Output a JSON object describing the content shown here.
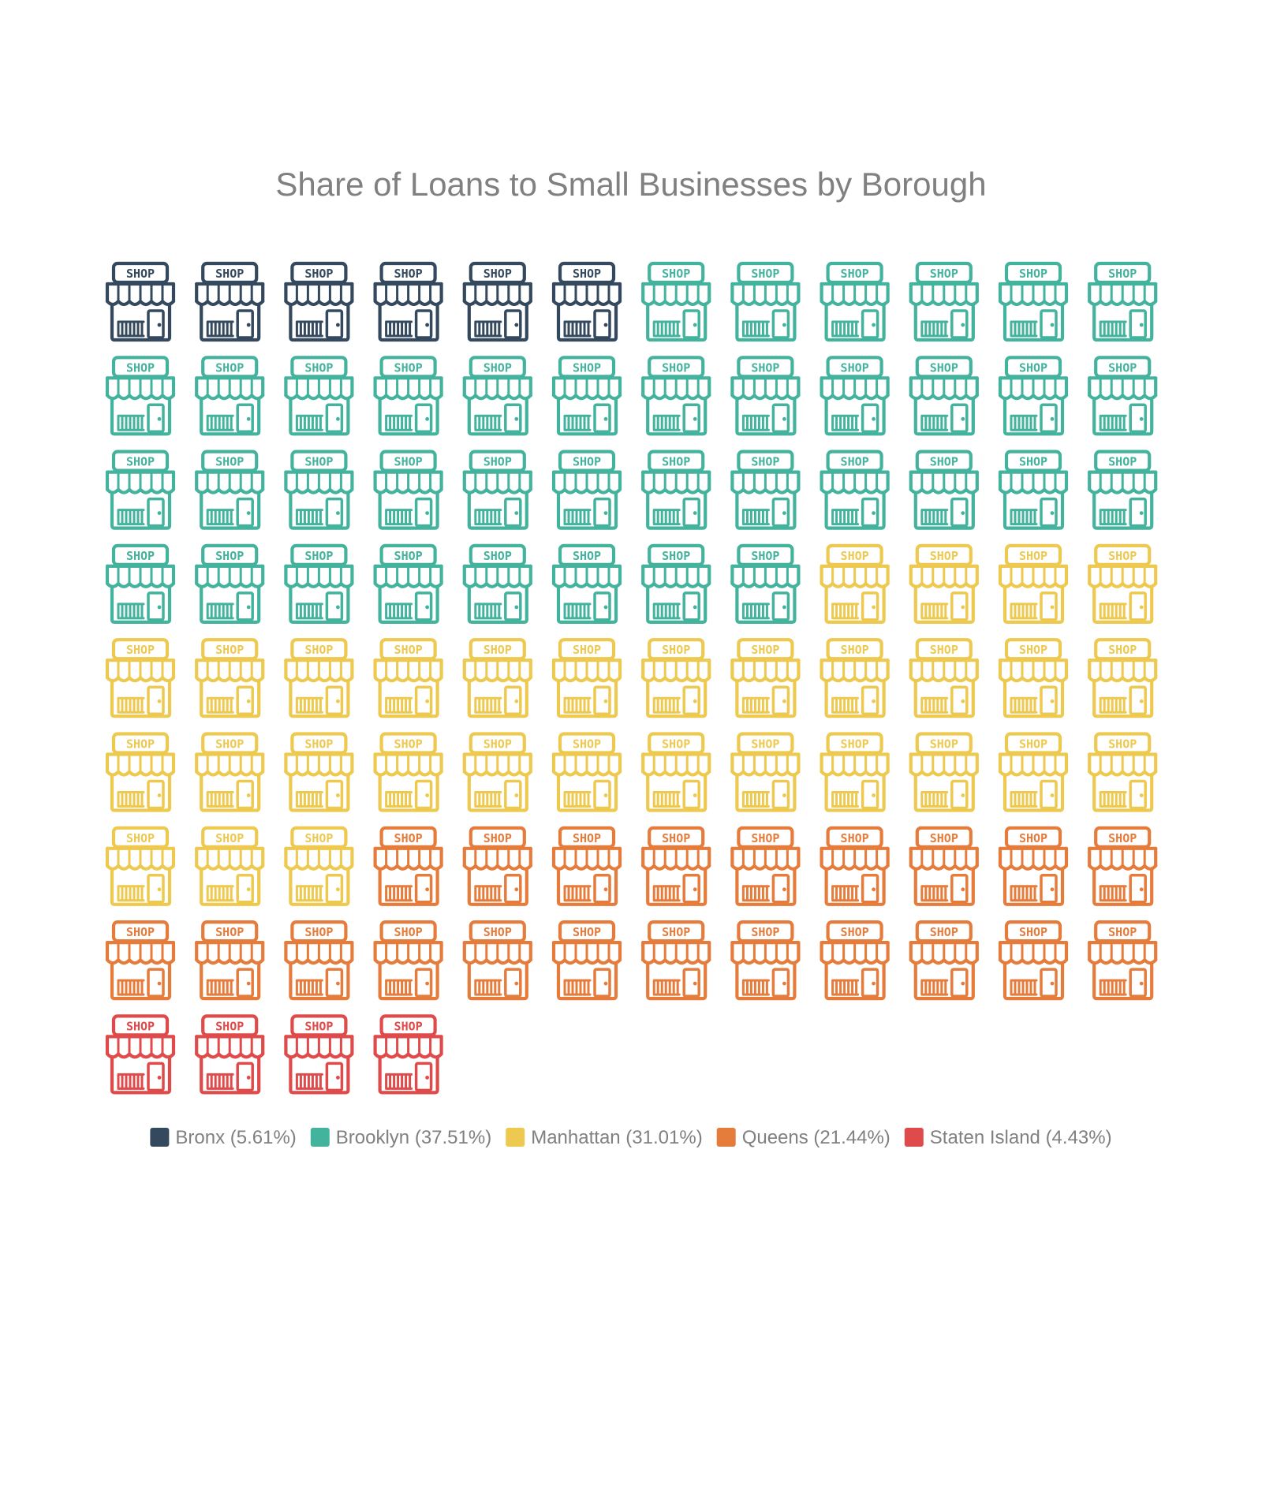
{
  "chart_data": {
    "type": "waffle",
    "title": "Share of Loans to Small Businesses by Borough",
    "icon": "shop-icon",
    "icon_text": "SHOP",
    "grid": {
      "columns": 12,
      "total_icons": 100
    },
    "series": [
      {
        "name": "Bronx",
        "label": "Bronx (5.61%)",
        "percent": 5.61,
        "icons": 6,
        "color": "#34495e"
      },
      {
        "name": "Brooklyn",
        "label": "Brooklyn (37.51%)",
        "percent": 37.51,
        "icons": 38,
        "color": "#44b39d"
      },
      {
        "name": "Manhattan",
        "label": "Manhattan (31.01%)",
        "percent": 31.01,
        "icons": 31,
        "color": "#eec94f"
      },
      {
        "name": "Queens",
        "label": "Queens (21.44%)",
        "percent": 21.44,
        "icons": 21,
        "color": "#e57c3c"
      },
      {
        "name": "Staten Island",
        "label": "Staten Island (4.43%)",
        "percent": 4.43,
        "icons": 4,
        "color": "#df4b4b"
      }
    ],
    "legend": {
      "position": "bottom"
    }
  }
}
